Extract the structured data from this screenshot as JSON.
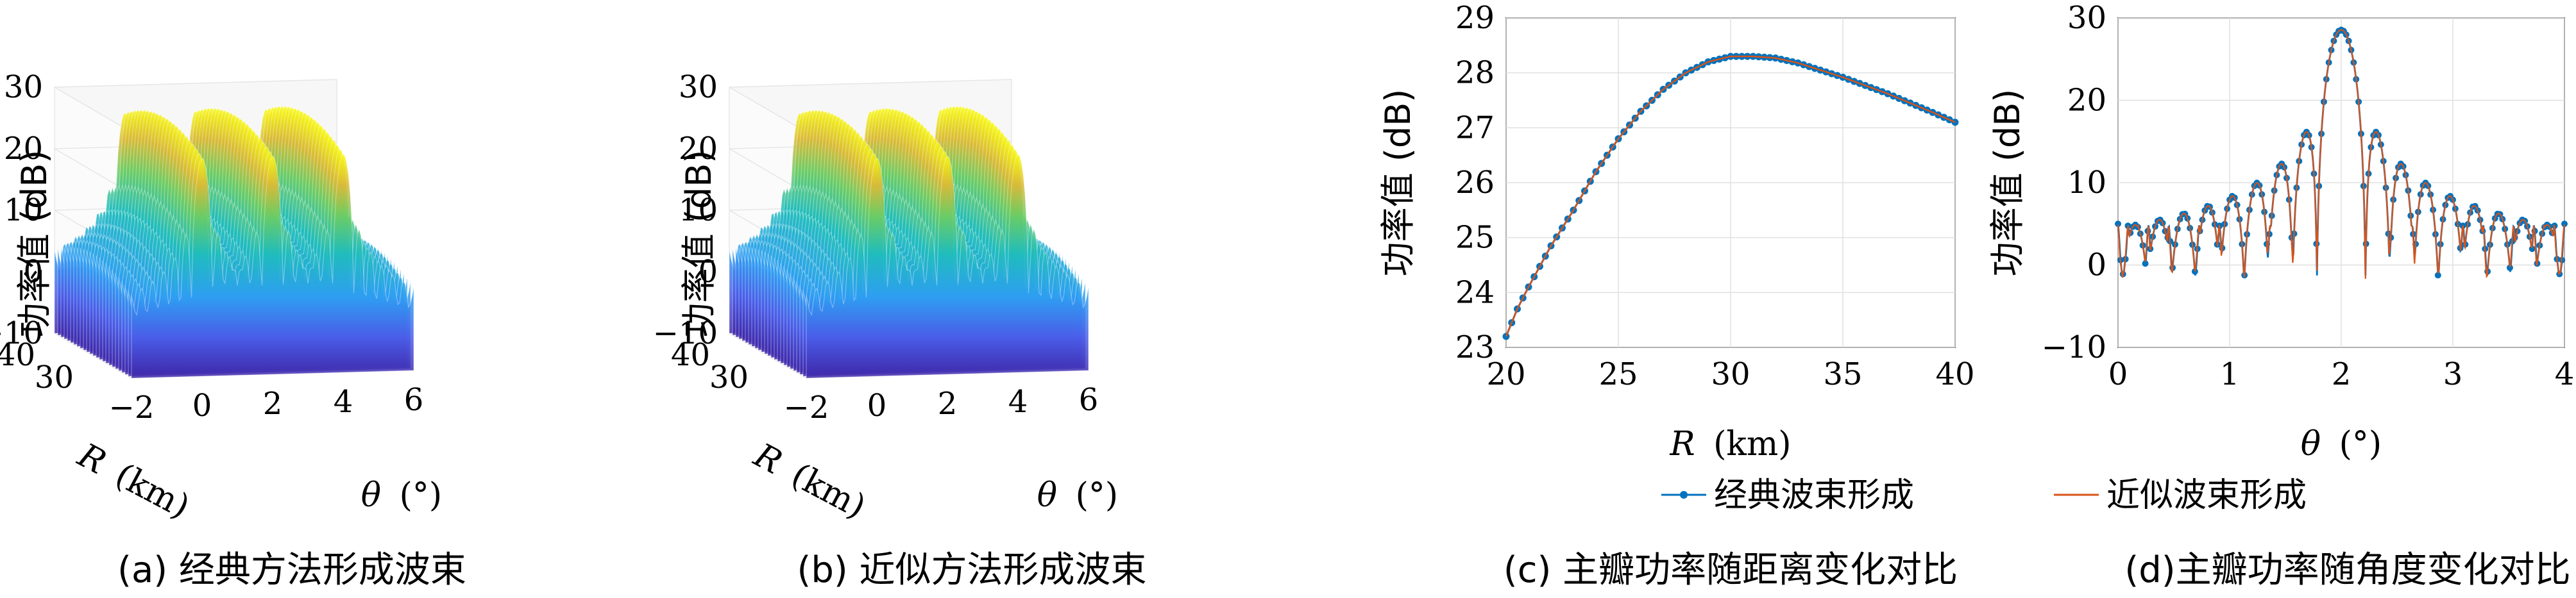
{
  "panels": [
    {
      "id": "a",
      "caption": "(a) 经典方法形成波束",
      "chart_data": {
        "type": "surface3d",
        "zlabel": "功率值 (dB)",
        "ylabel_var": "R",
        "ylabel_unit": "(km)",
        "xlabel_var": "θ",
        "xlabel_unit": "(°)",
        "z_ticks": [
          "30",
          "20",
          "10",
          "0",
          "−10"
        ],
        "r_ticks": [
          "40",
          "30"
        ],
        "theta_ticks": [
          "−2",
          "0",
          "2",
          "4",
          "6"
        ],
        "zlim": [
          -10,
          30
        ],
        "xlim": [
          -2,
          6
        ],
        "ylim": [
          20,
          40
        ],
        "ridges_theta": [
          0,
          2,
          4
        ],
        "peak_dB": 28.3
      }
    },
    {
      "id": "b",
      "caption": "(b) 近似方法形成波束",
      "chart_data": {
        "type": "surface3d",
        "zlabel": "功率值 (dB)",
        "ylabel_var": "R",
        "ylabel_unit": "(km)",
        "xlabel_var": "θ",
        "xlabel_unit": "(°)",
        "z_ticks": [
          "30",
          "20",
          "10",
          "0",
          "−10"
        ],
        "r_ticks": [
          "40",
          "30"
        ],
        "theta_ticks": [
          "−2",
          "0",
          "2",
          "4",
          "6"
        ],
        "zlim": [
          -10,
          30
        ],
        "xlim": [
          -2,
          6
        ],
        "ylim": [
          20,
          40
        ],
        "ridges_theta": [
          0,
          2,
          4
        ],
        "peak_dB": 28.3
      }
    },
    {
      "id": "c",
      "caption": "(c) 主瓣功率随距离变化对比",
      "chart_data": {
        "type": "line",
        "xlabel_var": "R",
        "xlabel_unit": "(km)",
        "ylabel": "功率值 (dB)",
        "xlim": [
          20,
          40
        ],
        "ylim": [
          23,
          29
        ],
        "x_ticks": [
          20,
          25,
          30,
          35,
          40
        ],
        "y_ticks": [
          23,
          24,
          25,
          26,
          27,
          28,
          29
        ],
        "grid": true,
        "x": [
          20,
          20.5,
          21,
          22,
          23,
          24,
          25,
          26,
          27,
          28,
          29,
          30,
          31,
          32,
          33,
          34,
          35,
          36,
          37,
          38,
          39,
          40
        ],
        "series": [
          {
            "name": "经典波束形成",
            "color": "#0072BD",
            "marker": "dot",
            "values": [
              23.2,
              23.7,
              24.1,
              24.85,
              25.5,
              26.2,
              26.8,
              27.3,
              27.7,
              28.0,
              28.2,
              28.3,
              28.3,
              28.27,
              28.18,
              28.05,
              27.92,
              27.77,
              27.62,
              27.45,
              27.28,
              27.1
            ]
          },
          {
            "name": "近似波束形成",
            "color": "#D95319",
            "marker": "none",
            "values": [
              23.2,
              23.7,
              24.1,
              24.85,
              25.5,
              26.2,
              26.8,
              27.3,
              27.7,
              28.0,
              28.2,
              28.3,
              28.3,
              28.27,
              28.18,
              28.05,
              27.92,
              27.77,
              27.62,
              27.45,
              27.28,
              27.1
            ]
          }
        ]
      }
    },
    {
      "id": "d",
      "caption": "(d)主瓣功率随角度变化对比",
      "chart_data": {
        "type": "line",
        "xlabel_var": "θ",
        "xlabel_unit": "(°)",
        "ylabel": "功率值 (dB)",
        "xlim": [
          0,
          4
        ],
        "ylim": [
          -10,
          30
        ],
        "x_ticks": [
          0,
          1,
          2,
          3,
          4
        ],
        "y_ticks": [
          -10,
          0,
          10,
          20,
          30
        ],
        "grid": true,
        "mainlobe_center": 2.0,
        "peak_dB": 28.3,
        "sidelobe_ripple": "2–6 dB peaks, nulls near −5 dB",
        "series": [
          {
            "name": "经典波束形成",
            "color": "#0072BD",
            "marker": "dot"
          },
          {
            "name": "近似波束形成",
            "color": "#D95319",
            "marker": "none"
          }
        ]
      }
    }
  ],
  "legend": {
    "items": [
      "经典波束形成",
      "近似波束形成"
    ],
    "colors": [
      "#0072BD",
      "#D95319"
    ]
  }
}
